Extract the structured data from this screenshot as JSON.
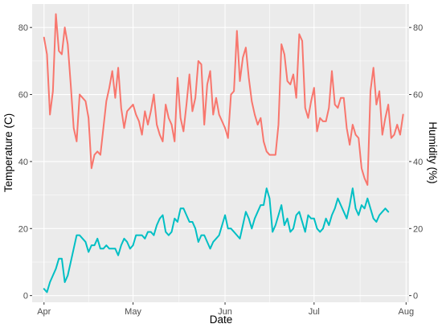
{
  "chart_data": {
    "type": "line",
    "xlabel": "Date",
    "ylabel_left": "Temperature (C)",
    "ylabel_right": "Humidity (%)",
    "grid": true,
    "xlim": [
      "2021-03-28",
      "2021-08-02"
    ],
    "ylim": [
      -2,
      87
    ],
    "x_ticks": [
      {
        "date": "2021-04-01",
        "label": "Apr"
      },
      {
        "date": "2021-05-01",
        "label": "May"
      },
      {
        "date": "2021-06-01",
        "label": "Jun"
      },
      {
        "date": "2021-07-01",
        "label": "Jul"
      },
      {
        "date": "2021-08-01",
        "label": "Aug"
      }
    ],
    "y_ticks_left": [
      0,
      20,
      40,
      60,
      80
    ],
    "y_ticks_right": [
      0,
      20,
      40,
      60,
      80
    ],
    "x_start": "2021-04-01",
    "series": [
      {
        "color": "#F8766D",
        "values": [
          77,
          72,
          54,
          61,
          84,
          73,
          72,
          80,
          75,
          63,
          50,
          46,
          60,
          59,
          58,
          53,
          38,
          42,
          43,
          42,
          50,
          58,
          62,
          67,
          59,
          68,
          56,
          50,
          55,
          56,
          57,
          54,
          52,
          48,
          55,
          51,
          55,
          60,
          51,
          48,
          46,
          57,
          53,
          51,
          46,
          65,
          53,
          49,
          57,
          66,
          55,
          59,
          70,
          69,
          51,
          63,
          67,
          54,
          59,
          54,
          52,
          50,
          47,
          60,
          61,
          79,
          64,
          71,
          74,
          65,
          58,
          54,
          51,
          53,
          46,
          43,
          42,
          42,
          42,
          51,
          75,
          72,
          64,
          63,
          66,
          59,
          78,
          76,
          56,
          53,
          58,
          62,
          49,
          53,
          52,
          52,
          56,
          67,
          57,
          56,
          59,
          59,
          50,
          45,
          51,
          48,
          47,
          38,
          35,
          33,
          61,
          68,
          57,
          61,
          48,
          53,
          57,
          47,
          48,
          51,
          48,
          54
        ]
      },
      {
        "color": "#00BFC4",
        "values": [
          2,
          1,
          4,
          6,
          8,
          11,
          11,
          4,
          6,
          10,
          14,
          18,
          18,
          17,
          16,
          13,
          15,
          15,
          17,
          14,
          14,
          15,
          14,
          14,
          14,
          12,
          15,
          17,
          16,
          14,
          15,
          18,
          18,
          18,
          17,
          19,
          19,
          18,
          21,
          23,
          24,
          19,
          18,
          19,
          23,
          22,
          26,
          26,
          24,
          22,
          22,
          20,
          16,
          18,
          18,
          16,
          14,
          16,
          17,
          18,
          21,
          24,
          20,
          20,
          19,
          18,
          17,
          21,
          25,
          23,
          20,
          23,
          25,
          27,
          27,
          32,
          29,
          19,
          21,
          24,
          27,
          21,
          23,
          19,
          20,
          24,
          25,
          22,
          19,
          24,
          23,
          23,
          20,
          19,
          20,
          23,
          21,
          24,
          26,
          29,
          27,
          25,
          23,
          27,
          32,
          26,
          24,
          27,
          26,
          29,
          26,
          23,
          22,
          24,
          25,
          26,
          25
        ]
      }
    ]
  }
}
